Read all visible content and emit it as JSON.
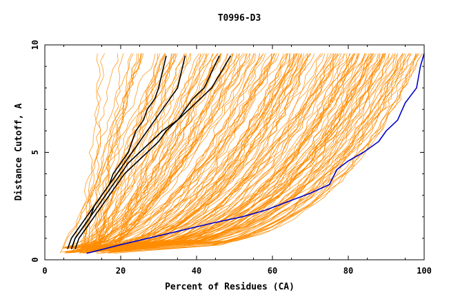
{
  "chart_data": {
    "type": "line",
    "title": "T0996-D3",
    "xlabel": "Percent of Residues (CA)",
    "ylabel": "Distance Cutoff, A",
    "xlim": [
      0,
      100
    ],
    "ylim": [
      0,
      10
    ],
    "xticks": [
      0,
      20,
      40,
      60,
      80,
      100
    ],
    "yticks": [
      0,
      5,
      10
    ],
    "grid": false,
    "colors": {
      "background_model": "#ff8c00",
      "highlight": "#000000",
      "reference": "#0000cc"
    },
    "highlight_series": [
      {
        "x": [
          7,
          8,
          10,
          12,
          13,
          15,
          17,
          18,
          20,
          22,
          23,
          24,
          26,
          27,
          29,
          30,
          32
        ],
        "y": [
          0.5,
          1.0,
          1.5,
          2.0,
          2.5,
          3.0,
          3.5,
          4.0,
          4.5,
          5.0,
          5.5,
          6.0,
          6.5,
          7.0,
          7.5,
          8.0,
          9.5
        ]
      },
      {
        "x": [
          6,
          7,
          9,
          11,
          13,
          15,
          17,
          19,
          21,
          23,
          25,
          27,
          29,
          31,
          33,
          35,
          37
        ],
        "y": [
          0.5,
          1.0,
          1.5,
          2.0,
          2.5,
          3.0,
          3.5,
          4.0,
          4.5,
          5.0,
          5.5,
          6.0,
          6.5,
          7.0,
          7.5,
          8.0,
          9.5
        ]
      },
      {
        "x": [
          8,
          9,
          11,
          13,
          15,
          17,
          19,
          21,
          24,
          27,
          30,
          32,
          35,
          37,
          39,
          42,
          46
        ],
        "y": [
          0.5,
          1.0,
          1.5,
          2.0,
          2.5,
          3.0,
          3.5,
          4.0,
          4.5,
          5.0,
          5.5,
          6.0,
          6.5,
          7.0,
          7.5,
          8.0,
          9.5
        ]
      },
      {
        "x": [
          7,
          8,
          10,
          12,
          14,
          16,
          18,
          20,
          22,
          25,
          28,
          31,
          35,
          38,
          41,
          44,
          49
        ],
        "y": [
          0.5,
          1.0,
          1.5,
          2.0,
          2.5,
          3.0,
          3.5,
          4.0,
          4.5,
          5.0,
          5.5,
          6.0,
          6.5,
          7.0,
          7.5,
          8.0,
          9.5
        ]
      }
    ],
    "reference_series": {
      "x": [
        11,
        20,
        32,
        44,
        52,
        58,
        64,
        70,
        75,
        77,
        80,
        84,
        88,
        90,
        93,
        95,
        98,
        99,
        100
      ],
      "y": [
        0.3,
        0.7,
        1.2,
        1.7,
        2.0,
        2.3,
        2.7,
        3.1,
        3.5,
        4.2,
        4.6,
        5.0,
        5.5,
        6.0,
        6.5,
        7.3,
        8.0,
        9.0,
        9.6
      ]
    },
    "background_series_count": 180
  }
}
